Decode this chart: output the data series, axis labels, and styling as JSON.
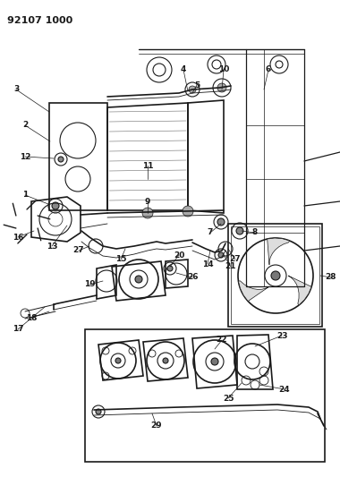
{
  "title": "92107 1000",
  "bg_color": "#ffffff",
  "line_color": "#1a1a1a",
  "gray": "#888888",
  "light_gray": "#cccccc",
  "font_size_title": 8,
  "font_size_label": 6.5
}
